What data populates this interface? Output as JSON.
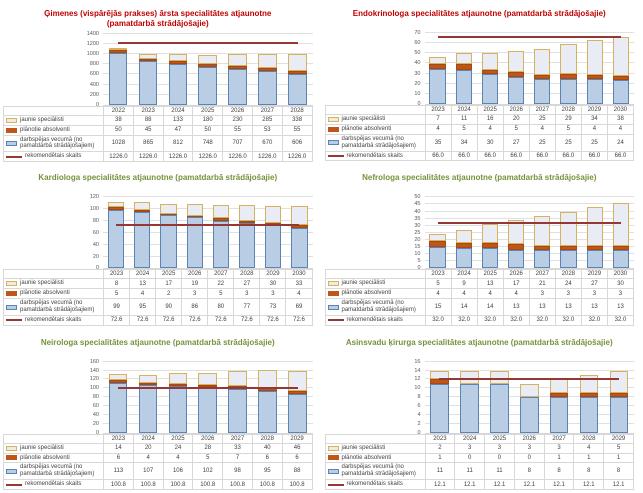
{
  "colors": {
    "title_red": "#C00000",
    "title_green": "#76923C",
    "bar_working_age_fill": "#B9CDE5",
    "bar_working_age_border": "#5B84B5",
    "bar_graduates_fill": "#C0551A",
    "bar_new_specialists_fill": "#E9ECF4",
    "bar_new_specialists_border": "#D6B25E",
    "recommended_line": "#953735",
    "gridline": "#E0E0E0",
    "table_border": "#D8D8D8",
    "table_text": "#404040",
    "axis_text": "#595959"
  },
  "chart_data": [
    {
      "type": "bar",
      "title": "Ģimenes (vispārējās prakses) ārsta specialitātes atjaunotne (pamatdarbā strādājošajie)",
      "title_color": "#C00000",
      "xlabel": "",
      "ylabel": "",
      "ylim": [
        0,
        1400
      ],
      "ystep": 200,
      "grid": true,
      "legend_position": "table-left",
      "categories": [
        "2022",
        "2023",
        "2024",
        "2025",
        "2026",
        "2027",
        "2028"
      ],
      "series": [
        {
          "name": "jaunie speciālisti",
          "values": [
            38,
            88,
            133,
            180,
            230,
            285,
            338
          ]
        },
        {
          "name": "plānotie absolventi",
          "values": [
            50,
            45,
            47,
            50,
            55,
            53,
            55
          ]
        },
        {
          "name": "darbspējas vecumā (no pamatdarbā strādājošajiem)",
          "values": [
            1028,
            865,
            812,
            748,
            707,
            670,
            606
          ]
        },
        {
          "name": "rekomendētais skaits",
          "type": "line",
          "value": 1226.0,
          "display": "1226.0"
        }
      ]
    },
    {
      "type": "bar",
      "title": "Endokrinologa specialitātes atjaunotne (pamatdarbā strādājošajie)",
      "title_color": "#C00000",
      "xlabel": "",
      "ylabel": "",
      "ylim": [
        0,
        70
      ],
      "ystep": 10,
      "grid": true,
      "legend_position": "table-left",
      "categories": [
        "2023",
        "2024",
        "2025",
        "2026",
        "2027",
        "2028",
        "2029",
        "2030"
      ],
      "series": [
        {
          "name": "jaunie speciālisti",
          "values": [
            7,
            11,
            16,
            20,
            25,
            29,
            34,
            38
          ]
        },
        {
          "name": "plānotie absolventi",
          "values": [
            4,
            5,
            4,
            5,
            4,
            5,
            4,
            4
          ]
        },
        {
          "name": "darbspējas vecumā (no pamatdarbā strādājošajiem)",
          "values": [
            35,
            34,
            30,
            27,
            25,
            25,
            25,
            24
          ]
        },
        {
          "name": "rekomendētais skaits",
          "type": "line",
          "value": 66.0,
          "display": "66.0"
        }
      ]
    },
    {
      "type": "bar",
      "title": "Kardiologa specialitātes atjaunotne (pamatdarbā strādājošajie)",
      "title_color": "#76923C",
      "xlabel": "",
      "ylabel": "",
      "ylim": [
        0,
        120
      ],
      "ystep": 20,
      "grid": true,
      "legend_position": "table-left",
      "categories": [
        "2023",
        "2024",
        "2025",
        "2026",
        "2027",
        "2028",
        "2029",
        "2030"
      ],
      "series": [
        {
          "name": "jaunie speciālisti",
          "values": [
            8,
            13,
            17,
            19,
            22,
            27,
            30,
            33
          ]
        },
        {
          "name": "plānotie absolventi",
          "values": [
            5,
            4,
            2,
            3,
            5,
            3,
            3,
            4
          ]
        },
        {
          "name": "darbspējas vecumā (no pamatdarbā strādājošajiem)",
          "values": [
            99,
            95,
            90,
            86,
            80,
            77,
            73,
            69
          ]
        },
        {
          "name": "rekomendētais skaits",
          "type": "line",
          "value": 72.6,
          "display": "72.6"
        }
      ]
    },
    {
      "type": "bar",
      "title": "Nefrologa specialitātes atjaunotne (pamatdarbā strādājošajie)",
      "title_color": "#76923C",
      "xlabel": "",
      "ylabel": "",
      "ylim": [
        0,
        50
      ],
      "ystep": 5,
      "grid": true,
      "legend_position": "table-left",
      "categories": [
        "2023",
        "2024",
        "2025",
        "2026",
        "2027",
        "2028",
        "2029",
        "2030"
      ],
      "series": [
        {
          "name": "jaunie speciālisti",
          "values": [
            5,
            9,
            13,
            17,
            21,
            24,
            27,
            30
          ]
        },
        {
          "name": "plānotie absolventi",
          "values": [
            4,
            4,
            4,
            4,
            3,
            3,
            3,
            3
          ]
        },
        {
          "name": "darbspējas vecumā (no pamatdarbā strādājošajiem)",
          "values": [
            15,
            14,
            14,
            13,
            13,
            13,
            13,
            13
          ]
        },
        {
          "name": "rekomendētais skaits",
          "type": "line",
          "value": 32.0,
          "display": "32.0"
        }
      ]
    },
    {
      "type": "bar",
      "title": "Neirologa specialitātes atjaunotne (pamatdarbā strādājošajie)",
      "title_color": "#76923C",
      "xlabel": "",
      "ylabel": "",
      "ylim": [
        0,
        160
      ],
      "ystep": 20,
      "grid": true,
      "legend_position": "table-left",
      "categories": [
        "2023",
        "2024",
        "2025",
        "2026",
        "2027",
        "2028",
        "2029"
      ],
      "series": [
        {
          "name": "jaunie speciālisti",
          "values": [
            14,
            20,
            24,
            28,
            33,
            40,
            46
          ]
        },
        {
          "name": "plānotie absolventi",
          "values": [
            6,
            4,
            4,
            5,
            7,
            6,
            6
          ]
        },
        {
          "name": "darbspējas vecumā (no pamatdarbā strādājošajiem)",
          "values": [
            113,
            107,
            106,
            102,
            98,
            95,
            88
          ]
        },
        {
          "name": "rekomendētais skaits",
          "type": "line",
          "value": 100.8,
          "display": "100.8"
        }
      ]
    },
    {
      "type": "bar",
      "title": "Asinsvadu ķirurga specialitātes atjaunotne (pamatdarbā strādājošajie)",
      "title_color": "#76923C",
      "xlabel": "",
      "ylabel": "",
      "ylim": [
        0,
        16
      ],
      "ystep": 2,
      "grid": true,
      "legend_position": "table-left",
      "categories": [
        "2023",
        "2024",
        "2025",
        "2026",
        "2027",
        "2028",
        "2029"
      ],
      "series": [
        {
          "name": "jaunie speciālisti",
          "values": [
            2,
            3,
            3,
            3,
            3,
            4,
            5
          ]
        },
        {
          "name": "plānotie absolventi",
          "values": [
            1,
            0,
            0,
            0,
            1,
            1,
            1
          ]
        },
        {
          "name": "darbspējas vecumā (no pamatdarbā strādājošajiem)",
          "values": [
            11,
            11,
            11,
            8,
            8,
            8,
            8
          ]
        },
        {
          "name": "rekomendētais skaits",
          "type": "line",
          "value": 12.1,
          "display": "12.1"
        }
      ]
    }
  ]
}
